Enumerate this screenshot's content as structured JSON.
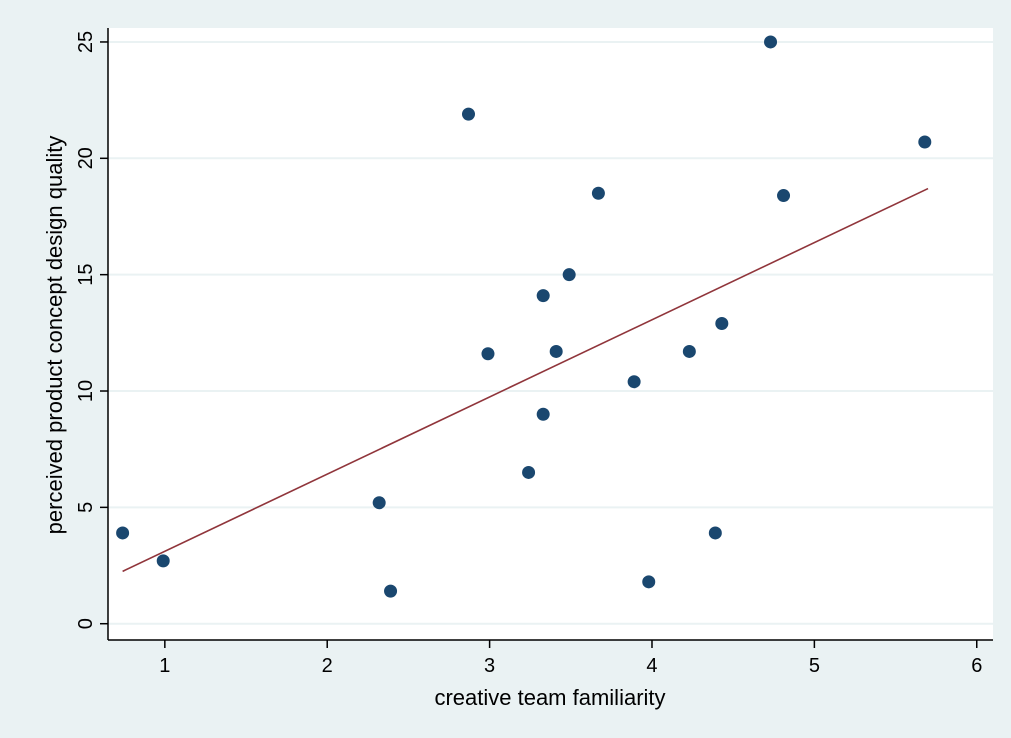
{
  "chart_data": {
    "type": "scatter",
    "xlabel": "creative team familiarity",
    "ylabel": "perceived product concept design quality",
    "xlim": [
      0.65,
      6.1
    ],
    "ylim": [
      -0.7,
      25.6
    ],
    "x_ticks": [
      1,
      2,
      3,
      4,
      5,
      6
    ],
    "y_ticks": [
      0,
      5,
      10,
      15,
      20,
      25
    ],
    "grid": "horizontal",
    "legend": "none",
    "colors": {
      "background": "#eaf2f3",
      "plot_area": "#ffffff",
      "gridline": "#eaf2f3",
      "marker": "#1a476f",
      "fit_line": "#90353b"
    },
    "points": [
      {
        "x": 0.74,
        "y": 3.9
      },
      {
        "x": 0.99,
        "y": 2.7
      },
      {
        "x": 2.32,
        "y": 5.2
      },
      {
        "x": 2.39,
        "y": 1.4
      },
      {
        "x": 2.87,
        "y": 21.9
      },
      {
        "x": 2.99,
        "y": 11.6
      },
      {
        "x": 3.24,
        "y": 6.5
      },
      {
        "x": 3.33,
        "y": 14.1
      },
      {
        "x": 3.33,
        "y": 9.0
      },
      {
        "x": 3.41,
        "y": 11.7
      },
      {
        "x": 3.49,
        "y": 15.0
      },
      {
        "x": 3.67,
        "y": 18.5
      },
      {
        "x": 3.89,
        "y": 10.4
      },
      {
        "x": 3.98,
        "y": 1.8
      },
      {
        "x": 4.23,
        "y": 11.7
      },
      {
        "x": 4.39,
        "y": 3.9
      },
      {
        "x": 4.43,
        "y": 12.9
      },
      {
        "x": 4.73,
        "y": 25.0
      },
      {
        "x": 4.81,
        "y": 18.4
      },
      {
        "x": 5.68,
        "y": 20.7
      }
    ],
    "fit_line": {
      "x": [
        0.74,
        5.7
      ],
      "y": [
        2.25,
        18.7
      ]
    }
  }
}
